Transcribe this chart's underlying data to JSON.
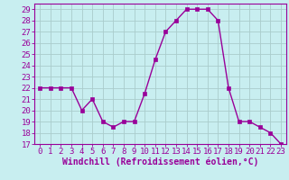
{
  "x": [
    0,
    1,
    2,
    3,
    4,
    5,
    6,
    7,
    8,
    9,
    10,
    11,
    12,
    13,
    14,
    15,
    16,
    17,
    18,
    19,
    20,
    21,
    22,
    23
  ],
  "y": [
    22,
    22,
    22,
    22,
    20,
    21,
    19,
    18.5,
    19,
    19,
    21.5,
    24.5,
    27,
    28,
    29,
    29,
    29,
    28,
    22,
    19,
    19,
    18.5,
    18,
    17
  ],
  "line_color": "#990099",
  "marker": "s",
  "markersize": 2.5,
  "linewidth": 1.0,
  "bg_color": "#c8eef0",
  "grid_color": "#aacccc",
  "xlabel": "Windchill (Refroidissement éolien,°C)",
  "xlabel_color": "#990099",
  "xlabel_fontsize": 7,
  "tick_fontsize": 6.5,
  "ylim": [
    17,
    29.5
  ],
  "xlim": [
    -0.5,
    23.5
  ],
  "yticks": [
    17,
    18,
    19,
    20,
    21,
    22,
    23,
    24,
    25,
    26,
    27,
    28,
    29
  ],
  "xticks": [
    0,
    1,
    2,
    3,
    4,
    5,
    6,
    7,
    8,
    9,
    10,
    11,
    12,
    13,
    14,
    15,
    16,
    17,
    18,
    19,
    20,
    21,
    22,
    23
  ],
  "xtick_labels": [
    "0",
    "1",
    "2",
    "3",
    "4",
    "5",
    "6",
    "7",
    "8",
    "9",
    "10",
    "11",
    "12",
    "13",
    "14",
    "15",
    "16",
    "17",
    "18",
    "19",
    "20",
    "21",
    "22",
    "23"
  ]
}
